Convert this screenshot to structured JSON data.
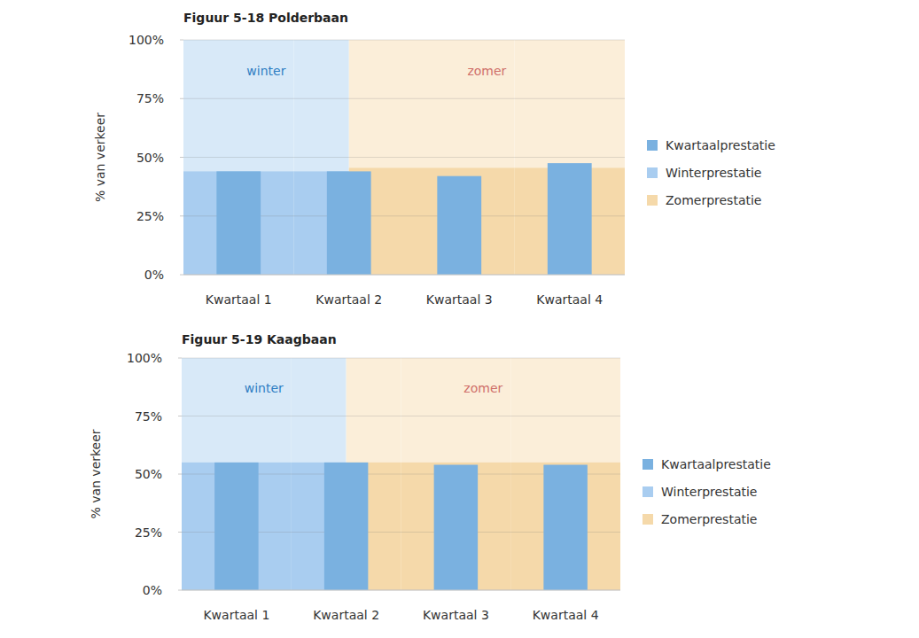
{
  "chart_data": [
    {
      "type": "bar",
      "title": "Figuur 5-18 Polderbaan",
      "ylabel": "% van verkeer",
      "categories": [
        "Kwartaal 1",
        "Kwartaal 2",
        "Kwartaal 3",
        "Kwartaal 4"
      ],
      "series": [
        {
          "name": "Kwartaalprestatie",
          "type": "bar",
          "color": "#7ab1e0",
          "values": [
            44,
            44,
            42,
            47.5
          ]
        },
        {
          "name": "Winterprestatie",
          "type": "area",
          "color": "#a9cdf0",
          "region_label": "winter",
          "values": [
            44,
            44,
            null,
            null
          ]
        },
        {
          "name": "Zomerprestatie",
          "type": "area",
          "color": "#f5d9aa",
          "region_label": "zomer",
          "values": [
            null,
            45.5,
            45.5,
            45.5
          ]
        }
      ],
      "ylim": [
        0,
        100
      ],
      "yticks": [
        {
          "value": 0,
          "label": "0%"
        },
        {
          "value": 25,
          "label": "25%"
        },
        {
          "value": 50,
          "label": "50%"
        },
        {
          "value": 75,
          "label": "75%"
        },
        {
          "value": 100,
          "label": "100%"
        }
      ],
      "grid": true,
      "legend": "right"
    },
    {
      "type": "bar",
      "title": "Figuur 5-19 Kaagbaan",
      "ylabel": "% van verkeer",
      "categories": [
        "Kwartaal 1",
        "Kwartaal 2",
        "Kwartaal 3",
        "Kwartaal 4"
      ],
      "series": [
        {
          "name": "Kwartaalprestatie",
          "type": "bar",
          "color": "#7ab1e0",
          "values": [
            55,
            55,
            54,
            54
          ]
        },
        {
          "name": "Winterprestatie",
          "type": "area",
          "color": "#a9cdf0",
          "region_label": "winter",
          "values": [
            55,
            55,
            null,
            null
          ]
        },
        {
          "name": "Zomerprestatie",
          "type": "area",
          "color": "#f5d9aa",
          "region_label": "zomer",
          "values": [
            null,
            55,
            55,
            55
          ]
        }
      ],
      "ylim": [
        0,
        100
      ],
      "yticks": [
        {
          "value": 0,
          "label": "0%"
        },
        {
          "value": 25,
          "label": "25%"
        },
        {
          "value": 50,
          "label": "50%"
        },
        {
          "value": 75,
          "label": "75%"
        },
        {
          "value": 100,
          "label": "100%"
        }
      ],
      "grid": true,
      "legend": "right"
    }
  ]
}
